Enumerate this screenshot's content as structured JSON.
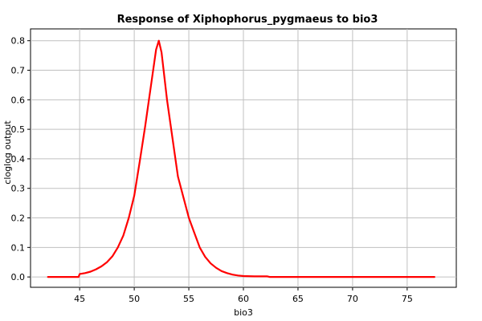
{
  "chart_data": {
    "type": "line",
    "title": "Response of Xiphophorus_pygmaeus to bio3",
    "xlabel": "bio3",
    "ylabel": "cloglog output",
    "xlim": [
      40.5,
      79.5
    ],
    "ylim": [
      -0.035,
      0.84
    ],
    "xticks": [
      45,
      50,
      55,
      60,
      65,
      70,
      75
    ],
    "yticks": [
      0.0,
      0.1,
      0.2,
      0.3,
      0.4,
      0.5,
      0.6,
      0.7,
      0.8
    ],
    "ytick_labels": [
      "0.0",
      "0.1",
      "0.2",
      "0.3",
      "0.4",
      "0.5",
      "0.6",
      "0.7",
      "0.8"
    ],
    "grid": true,
    "legend": "none",
    "line_color": "#ff0000",
    "series": [
      {
        "x": [
          42.1,
          44.9,
          45.0,
          45.5,
          46.0,
          46.5,
          47.0,
          47.5,
          48.0,
          48.5,
          49.0,
          49.5,
          50.0,
          50.5,
          51.0,
          51.5,
          52.0,
          52.25,
          52.5,
          53.0,
          53.5,
          54.0,
          54.5,
          55.0,
          55.5,
          56.0,
          56.5,
          57.0,
          57.5,
          58.0,
          58.5,
          59.0,
          59.5,
          60.0,
          61.0,
          62.2,
          62.4,
          65.0,
          70.0,
          77.5
        ],
        "y": [
          0.0,
          0.0,
          0.01,
          0.013,
          0.018,
          0.026,
          0.036,
          0.05,
          0.07,
          0.1,
          0.14,
          0.2,
          0.275,
          0.39,
          0.51,
          0.64,
          0.77,
          0.8,
          0.76,
          0.6,
          0.47,
          0.34,
          0.27,
          0.2,
          0.15,
          0.1,
          0.068,
          0.046,
          0.031,
          0.02,
          0.013,
          0.008,
          0.005,
          0.003,
          0.002,
          0.002,
          0.0,
          0.0,
          0.0,
          0.0
        ]
      }
    ]
  }
}
